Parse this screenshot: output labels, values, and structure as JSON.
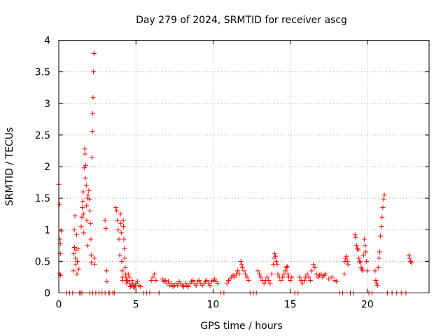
{
  "chart_data": {
    "type": "scatter",
    "title": "Day 279 of 2024, SRMTID for receiver ascg",
    "xlabel": "GPS time / hours",
    "ylabel": "SRMTID / TECUs",
    "xlim": [
      0,
      24
    ],
    "ylim": [
      0,
      4
    ],
    "xticks": [
      0,
      5,
      10,
      15,
      20
    ],
    "yticks": [
      0,
      0.5,
      1,
      1.5,
      2,
      2.5,
      3,
      3.5,
      4
    ],
    "xtick_labels": [
      "0",
      "5",
      "10",
      "15",
      "20"
    ],
    "ytick_labels": [
      "0",
      "0.5",
      "1",
      "1.5",
      "2",
      "2.5",
      "3",
      "3.5",
      "4"
    ],
    "grid": true,
    "marker": "+",
    "color": "#ff0000",
    "series": [
      {
        "name": "SRMTID",
        "points": [
          [
            0.0,
            1.72
          ],
          [
            0.05,
            1.4
          ],
          [
            0.08,
            0.85
          ],
          [
            0.1,
            0.62
          ],
          [
            0.12,
            0.28
          ],
          [
            0.15,
            0.98
          ],
          [
            0.1,
            0.78
          ],
          [
            0.05,
            0.3
          ],
          [
            0.5,
            0.0
          ],
          [
            0.7,
            0.0
          ],
          [
            0.9,
            0.0
          ],
          [
            0.95,
            0.35
          ],
          [
            0.98,
            0.62
          ],
          [
            1.0,
            1.0
          ],
          [
            1.02,
            0.72
          ],
          [
            1.05,
            1.22
          ],
          [
            1.08,
            0.55
          ],
          [
            1.1,
            0.45
          ],
          [
            1.12,
            0.68
          ],
          [
            1.15,
            0.92
          ],
          [
            1.18,
            0.3
          ],
          [
            1.2,
            0.5
          ],
          [
            1.25,
            0.7
          ],
          [
            1.3,
            0.38
          ],
          [
            1.35,
            0.0
          ],
          [
            1.4,
            0.0
          ],
          [
            1.5,
            0.0
          ],
          [
            1.45,
            1.05
          ],
          [
            1.5,
            1.2
          ],
          [
            1.52,
            1.35
          ],
          [
            1.55,
            1.45
          ],
          [
            1.58,
            1.6
          ],
          [
            1.6,
            1.25
          ],
          [
            1.62,
            0.95
          ],
          [
            1.65,
            1.98
          ],
          [
            1.68,
            2.28
          ],
          [
            1.7,
            2.2
          ],
          [
            1.72,
            1.82
          ],
          [
            1.75,
            2.02
          ],
          [
            1.78,
            1.7
          ],
          [
            1.8,
            1.38
          ],
          [
            1.82,
            1.15
          ],
          [
            1.85,
            0.75
          ],
          [
            1.88,
            1.5
          ],
          [
            1.9,
            1.55
          ],
          [
            1.95,
            1.62
          ],
          [
            2.0,
            1.48
          ],
          [
            2.02,
            1.3
          ],
          [
            2.05,
            1.1
          ],
          [
            2.08,
            0.85
          ],
          [
            2.1,
            0.6
          ],
          [
            2.12,
            0.48
          ],
          [
            2.15,
            2.15
          ],
          [
            2.18,
            2.56
          ],
          [
            2.2,
            2.84
          ],
          [
            2.22,
            3.09
          ],
          [
            2.25,
            3.5
          ],
          [
            2.28,
            3.79
          ],
          [
            2.3,
            0.55
          ],
          [
            2.32,
            0.45
          ],
          [
            2.0,
            0.0
          ],
          [
            2.2,
            0.0
          ],
          [
            2.4,
            0.0
          ],
          [
            2.6,
            0.0
          ],
          [
            2.8,
            0.0
          ],
          [
            3.0,
            0.0
          ],
          [
            3.2,
            0.0
          ],
          [
            3.0,
            1.15
          ],
          [
            3.05,
            1.02
          ],
          [
            3.1,
            0.35
          ],
          [
            3.12,
            0.18
          ],
          [
            3.3,
            0.0
          ],
          [
            3.5,
            0.0
          ],
          [
            3.6,
            0.0
          ],
          [
            3.7,
            1.35
          ],
          [
            3.75,
            1.3
          ],
          [
            3.8,
            1.15
          ],
          [
            3.85,
            1.0
          ],
          [
            3.9,
            0.85
          ],
          [
            3.95,
            0.6
          ],
          [
            4.0,
            1.25
          ],
          [
            4.02,
            1.1
          ],
          [
            4.05,
            0.95
          ],
          [
            4.08,
            0.5
          ],
          [
            4.1,
            0.35
          ],
          [
            4.12,
            0.2
          ],
          [
            4.15,
            0.25
          ],
          [
            4.18,
            1.15
          ],
          [
            4.2,
            1.05
          ],
          [
            4.22,
            0.85
          ],
          [
            4.25,
            0.7
          ],
          [
            4.28,
            0.55
          ],
          [
            4.3,
            0.4
          ],
          [
            4.32,
            0.3
          ],
          [
            4.35,
            0.25
          ],
          [
            4.38,
            0.2
          ],
          [
            4.4,
            0.15
          ],
          [
            4.42,
            0.18
          ],
          [
            4.45,
            0.2
          ],
          [
            4.5,
            0.3
          ],
          [
            4.55,
            0.25
          ],
          [
            4.6,
            0.15
          ],
          [
            4.65,
            0.1
          ],
          [
            4.7,
            0.12
          ],
          [
            4.75,
            0.2
          ],
          [
            4.8,
            0.15
          ],
          [
            4.85,
            0.1
          ],
          [
            4.9,
            0.08
          ],
          [
            4.95,
            0.12
          ],
          [
            5.0,
            0.15
          ],
          [
            5.1,
            0.18
          ],
          [
            5.2,
            0.12
          ],
          [
            5.3,
            0.1
          ],
          [
            5.5,
            0.0
          ],
          [
            5.7,
            0.0
          ],
          [
            5.9,
            0.0
          ],
          [
            6.0,
            0.2
          ],
          [
            6.1,
            0.25
          ],
          [
            6.2,
            0.3
          ],
          [
            6.3,
            0.2
          ],
          [
            6.5,
            0.0
          ],
          [
            6.7,
            0.22
          ],
          [
            6.8,
            0.18
          ],
          [
            6.9,
            0.2
          ],
          [
            7.0,
            0.15
          ],
          [
            7.1,
            0.18
          ],
          [
            7.2,
            0.12
          ],
          [
            7.3,
            0.15
          ],
          [
            7.4,
            0.1
          ],
          [
            7.5,
            0.12
          ],
          [
            7.6,
            0.15
          ],
          [
            7.7,
            0.12
          ],
          [
            7.8,
            0.18
          ],
          [
            7.9,
            0.15
          ],
          [
            8.0,
            0.12
          ],
          [
            8.1,
            0.1
          ],
          [
            8.2,
            0.15
          ],
          [
            8.3,
            0.12
          ],
          [
            8.4,
            0.1
          ],
          [
            8.5,
            0.15
          ],
          [
            8.6,
            0.18
          ],
          [
            8.7,
            0.2
          ],
          [
            8.8,
            0.15
          ],
          [
            8.9,
            0.12
          ],
          [
            9.0,
            0.18
          ],
          [
            9.1,
            0.2
          ],
          [
            9.2,
            0.15
          ],
          [
            9.3,
            0.12
          ],
          [
            9.4,
            0.15
          ],
          [
            9.5,
            0.18
          ],
          [
            9.6,
            0.2
          ],
          [
            9.7,
            0.15
          ],
          [
            9.8,
            0.12
          ],
          [
            9.9,
            0.18
          ],
          [
            10.0,
            0.2
          ],
          [
            10.1,
            0.22
          ],
          [
            10.2,
            0.18
          ],
          [
            10.3,
            0.15
          ],
          [
            10.5,
            0.0
          ],
          [
            10.7,
            0.0
          ],
          [
            10.9,
            0.15
          ],
          [
            11.0,
            0.2
          ],
          [
            11.1,
            0.22
          ],
          [
            11.2,
            0.25
          ],
          [
            11.3,
            0.28
          ],
          [
            11.4,
            0.25
          ],
          [
            11.5,
            0.3
          ],
          [
            11.6,
            0.35
          ],
          [
            11.7,
            0.3
          ],
          [
            11.8,
            0.5
          ],
          [
            11.85,
            0.45
          ],
          [
            11.9,
            0.4
          ],
          [
            12.0,
            0.35
          ],
          [
            12.1,
            0.3
          ],
          [
            12.2,
            0.25
          ],
          [
            12.3,
            0.2
          ],
          [
            12.4,
            0.0
          ],
          [
            12.6,
            0.0
          ],
          [
            12.8,
            0.0
          ],
          [
            12.9,
            0.35
          ],
          [
            13.0,
            0.3
          ],
          [
            13.1,
            0.25
          ],
          [
            13.2,
            0.2
          ],
          [
            13.3,
            0.15
          ],
          [
            13.4,
            0.2
          ],
          [
            13.5,
            0.25
          ],
          [
            13.6,
            0.2
          ],
          [
            13.7,
            0.15
          ],
          [
            13.8,
            0.3
          ],
          [
            13.9,
            0.45
          ],
          [
            13.95,
            0.55
          ],
          [
            14.0,
            0.62
          ],
          [
            14.05,
            0.58
          ],
          [
            14.1,
            0.5
          ],
          [
            14.15,
            0.45
          ],
          [
            14.2,
            0.3
          ],
          [
            14.3,
            0.25
          ],
          [
            14.4,
            0.2
          ],
          [
            14.5,
            0.25
          ],
          [
            14.6,
            0.3
          ],
          [
            14.7,
            0.35
          ],
          [
            14.75,
            0.4
          ],
          [
            14.8,
            0.42
          ],
          [
            14.85,
            0.3
          ],
          [
            14.9,
            0.25
          ],
          [
            15.0,
            0.2
          ],
          [
            15.1,
            0.25
          ],
          [
            15.3,
            0.0
          ],
          [
            15.5,
            0.0
          ],
          [
            15.6,
            0.25
          ],
          [
            15.7,
            0.2
          ],
          [
            15.8,
            0.15
          ],
          [
            15.9,
            0.2
          ],
          [
            16.0,
            0.25
          ],
          [
            16.1,
            0.3
          ],
          [
            16.2,
            0.25
          ],
          [
            16.3,
            0.2
          ],
          [
            16.4,
            0.35
          ],
          [
            16.5,
            0.45
          ],
          [
            16.6,
            0.4
          ],
          [
            16.7,
            0.3
          ],
          [
            16.8,
            0.25
          ],
          [
            16.9,
            0.28
          ],
          [
            17.0,
            0.3
          ],
          [
            17.1,
            0.25
          ],
          [
            17.2,
            0.28
          ],
          [
            17.3,
            0.3
          ],
          [
            17.5,
            0.22
          ],
          [
            17.7,
            0.25
          ],
          [
            17.9,
            0.2
          ],
          [
            18.0,
            0.18
          ],
          [
            18.2,
            0.0
          ],
          [
            18.4,
            0.0
          ],
          [
            18.5,
            0.3
          ],
          [
            18.55,
            0.5
          ],
          [
            18.6,
            0.55
          ],
          [
            18.65,
            0.58
          ],
          [
            18.7,
            0.5
          ],
          [
            18.75,
            0.45
          ],
          [
            18.9,
            0.0
          ],
          [
            19.1,
            0.0
          ],
          [
            19.2,
            0.92
          ],
          [
            19.25,
            0.88
          ],
          [
            19.3,
            0.75
          ],
          [
            19.35,
            0.7
          ],
          [
            19.4,
            0.68
          ],
          [
            19.45,
            0.55
          ],
          [
            19.5,
            0.5
          ],
          [
            19.55,
            0.48
          ],
          [
            19.6,
            0.4
          ],
          [
            19.65,
            0.38
          ],
          [
            19.7,
            0.35
          ],
          [
            19.75,
            0.6
          ],
          [
            19.8,
            0.85
          ],
          [
            19.85,
            0.75
          ],
          [
            19.9,
            0.65
          ],
          [
            19.95,
            0.5
          ],
          [
            20.0,
            0.35
          ],
          [
            20.1,
            0.0
          ],
          [
            20.3,
            0.0
          ],
          [
            20.5,
            0.35
          ],
          [
            20.55,
            0.2
          ],
          [
            20.6,
            0.15
          ],
          [
            20.65,
            0.12
          ],
          [
            20.7,
            0.4
          ],
          [
            20.75,
            0.55
          ],
          [
            20.8,
            0.65
          ],
          [
            20.85,
            0.9
          ],
          [
            20.9,
            1.05
          ],
          [
            20.95,
            1.2
          ],
          [
            21.0,
            1.35
          ],
          [
            21.05,
            1.48
          ],
          [
            21.1,
            1.55
          ],
          [
            21.3,
            0.0
          ],
          [
            21.6,
            0.0
          ],
          [
            21.9,
            0.0
          ],
          [
            22.2,
            0.0
          ],
          [
            22.5,
            0.0
          ],
          [
            22.7,
            0.6
          ],
          [
            22.75,
            0.55
          ],
          [
            22.8,
            0.5
          ],
          [
            22.85,
            0.48
          ]
        ]
      }
    ]
  }
}
